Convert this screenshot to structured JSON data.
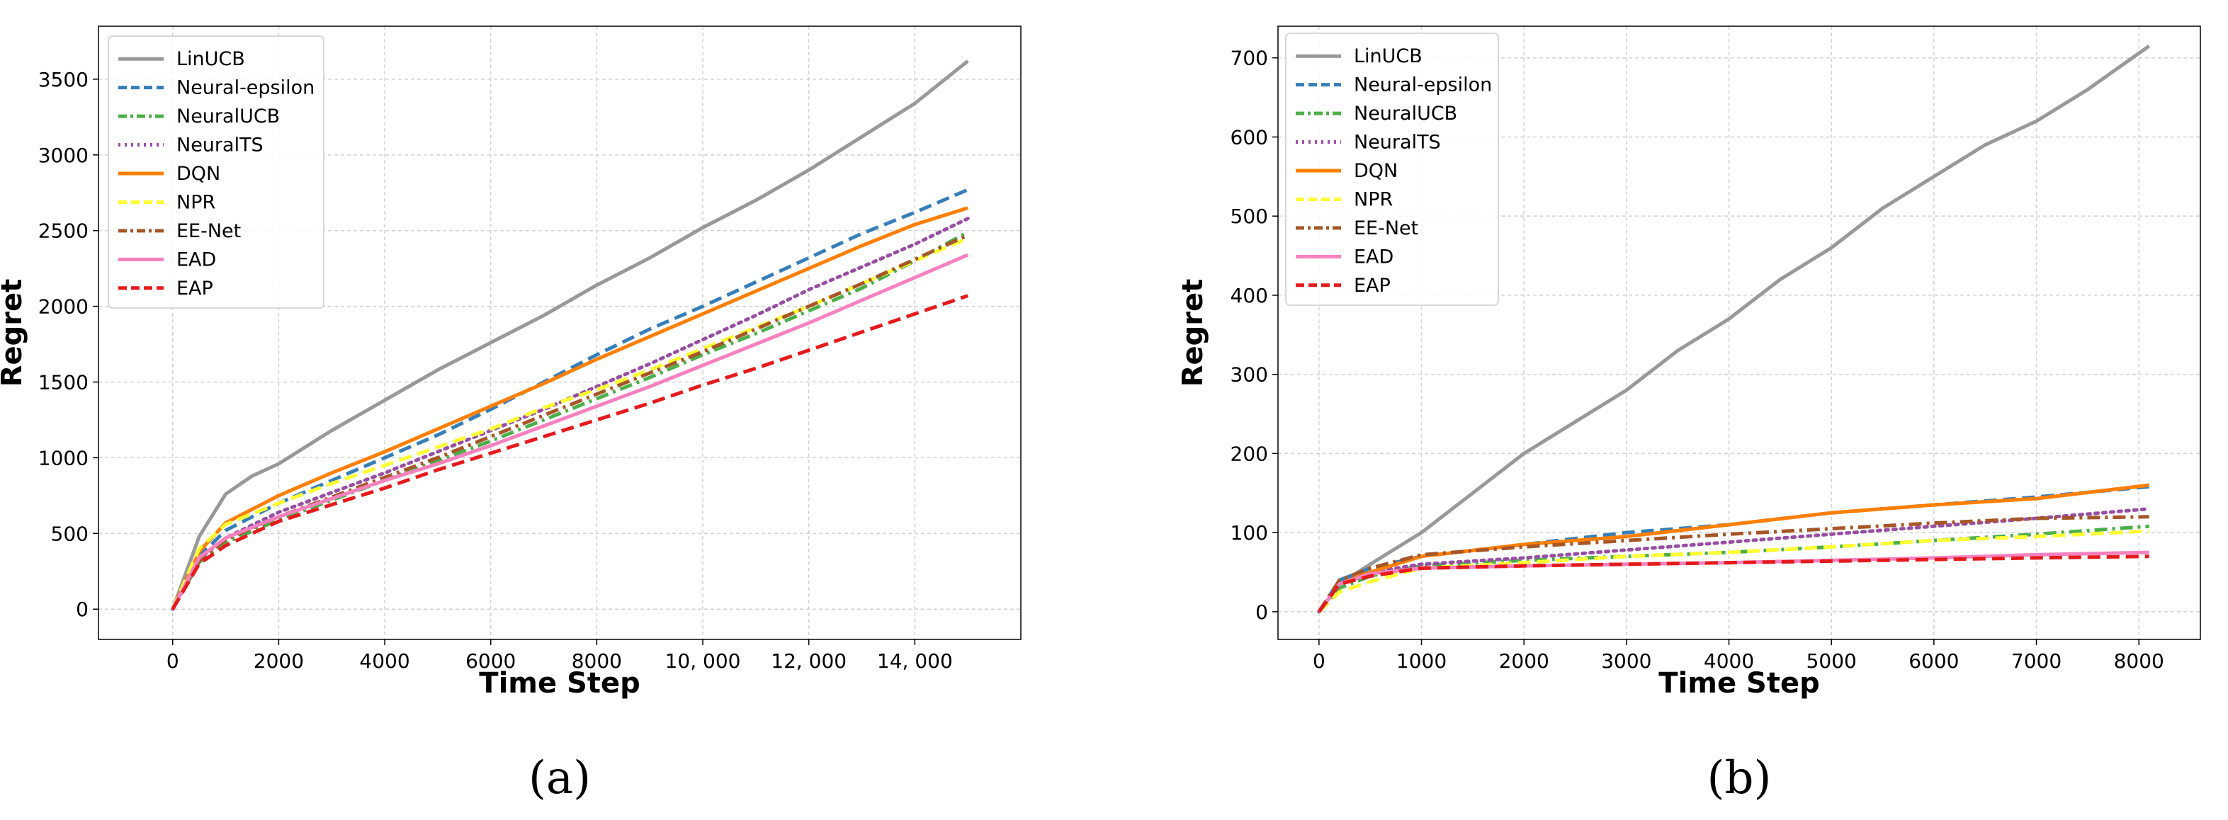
{
  "chart_data": [
    {
      "type": "line",
      "panel_label": "(a)",
      "title": "",
      "xlabel": "Time Step",
      "ylabel": "Regret",
      "xlim": [
        -1400,
        16000
      ],
      "ylim": [
        -200,
        3850
      ],
      "xticks": [
        0,
        2000,
        4000,
        6000,
        8000,
        10000,
        12000,
        14000
      ],
      "xtick_labels": [
        "0",
        "2000",
        "4000",
        "6000",
        "8000",
        "10, 000",
        "12, 000",
        "14, 000"
      ],
      "yticks": [
        0,
        500,
        1000,
        1500,
        2000,
        2500,
        3000,
        3500
      ],
      "ytick_labels": [
        "0",
        "500",
        "1000",
        "1500",
        "2000",
        "2500",
        "3000",
        "3500"
      ],
      "grid": true,
      "legend_position": "top-left",
      "series": [
        {
          "name": "LinUCB",
          "color": "#999999",
          "style": "solid",
          "x": [
            0,
            500,
            1000,
            1500,
            2000,
            3000,
            4000,
            5000,
            6000,
            7000,
            8000,
            9000,
            10000,
            11000,
            12000,
            13000,
            14000,
            15000
          ],
          "y": [
            0,
            480,
            760,
            880,
            960,
            1180,
            1380,
            1580,
            1760,
            1940,
            2140,
            2320,
            2520,
            2700,
            2900,
            3120,
            3340,
            3620
          ]
        },
        {
          "name": "Neural-epsilon",
          "color": "#377eb8",
          "style": "dashed",
          "x": [
            0,
            500,
            1000,
            2000,
            3000,
            4000,
            5000,
            6000,
            7000,
            8000,
            9000,
            10000,
            11000,
            12000,
            13000,
            14000,
            15000
          ],
          "y": [
            0,
            350,
            520,
            700,
            850,
            1000,
            1150,
            1320,
            1500,
            1680,
            1850,
            2000,
            2160,
            2320,
            2480,
            2620,
            2770
          ]
        },
        {
          "name": "NeuralUCB",
          "color": "#4daf4a",
          "style": "dashdot",
          "x": [
            0,
            500,
            1000,
            2000,
            3000,
            4000,
            5000,
            6000,
            7000,
            8000,
            9000,
            10000,
            11000,
            12000,
            13000,
            14000,
            15000
          ],
          "y": [
            0,
            310,
            440,
            590,
            720,
            850,
            980,
            1110,
            1250,
            1390,
            1530,
            1680,
            1820,
            1970,
            2120,
            2300,
            2490
          ]
        },
        {
          "name": "NeuralTS",
          "color": "#984ea3",
          "style": "dotted",
          "x": [
            0,
            500,
            1000,
            2000,
            3000,
            4000,
            5000,
            6000,
            7000,
            8000,
            9000,
            10000,
            11000,
            12000,
            13000,
            14000,
            15000
          ],
          "y": [
            0,
            330,
            470,
            640,
            770,
            900,
            1040,
            1180,
            1320,
            1470,
            1620,
            1780,
            1940,
            2110,
            2260,
            2410,
            2580
          ]
        },
        {
          "name": "DQN",
          "color": "#ff7f00",
          "style": "solid",
          "x": [
            0,
            500,
            1000,
            2000,
            3000,
            4000,
            5000,
            6000,
            7000,
            8000,
            9000,
            10000,
            11000,
            12000,
            13000,
            14000,
            15000
          ],
          "y": [
            0,
            380,
            570,
            750,
            900,
            1040,
            1190,
            1340,
            1490,
            1650,
            1800,
            1950,
            2100,
            2250,
            2400,
            2540,
            2650
          ]
        },
        {
          "name": "NPR",
          "color": "#ffff33",
          "style": "dashed",
          "x": [
            0,
            500,
            1000,
            2000,
            3000,
            4000,
            5000,
            6000,
            7000,
            8000,
            9000,
            10000,
            11000,
            12000,
            13000,
            14000,
            15000
          ],
          "y": [
            0,
            400,
            560,
            700,
            830,
            950,
            1070,
            1190,
            1330,
            1450,
            1580,
            1720,
            1860,
            2000,
            2150,
            2300,
            2450
          ]
        },
        {
          "name": "EE-Net",
          "color": "#a65628",
          "style": "dashdot",
          "x": [
            0,
            500,
            1000,
            2000,
            3000,
            4000,
            5000,
            6000,
            7000,
            8000,
            9000,
            10000,
            11000,
            12000,
            13000,
            14000,
            15000
          ],
          "y": [
            0,
            320,
            460,
            610,
            740,
            870,
            1000,
            1140,
            1280,
            1420,
            1560,
            1700,
            1850,
            2000,
            2150,
            2310,
            2470
          ]
        },
        {
          "name": "EAD",
          "color": "#f781bf",
          "style": "solid",
          "x": [
            0,
            500,
            1000,
            2000,
            3000,
            4000,
            5000,
            6000,
            7000,
            8000,
            9000,
            10000,
            11000,
            12000,
            13000,
            14000,
            15000
          ],
          "y": [
            0,
            340,
            470,
            610,
            730,
            850,
            960,
            1080,
            1210,
            1340,
            1470,
            1610,
            1750,
            1890,
            2040,
            2190,
            2340
          ]
        },
        {
          "name": "EAP",
          "color": "#e41a1c",
          "style": "dashed",
          "x": [
            0,
            500,
            1000,
            2000,
            3000,
            4000,
            5000,
            6000,
            7000,
            8000,
            9000,
            10000,
            11000,
            12000,
            13000,
            14000,
            15000
          ],
          "y": [
            0,
            300,
            420,
            580,
            690,
            800,
            920,
            1030,
            1140,
            1250,
            1360,
            1480,
            1590,
            1710,
            1830,
            1950,
            2070
          ]
        }
      ]
    },
    {
      "type": "line",
      "panel_label": "(b)",
      "title": "",
      "xlabel": "Time Step",
      "ylabel": "Regret",
      "xlim": [
        -400,
        8600
      ],
      "ylim": [
        -35,
        740
      ],
      "xticks": [
        0,
        1000,
        2000,
        3000,
        4000,
        5000,
        6000,
        7000,
        8000
      ],
      "xtick_labels": [
        "0",
        "1000",
        "2000",
        "3000",
        "4000",
        "5000",
        "6000",
        "7000",
        "8000"
      ],
      "yticks": [
        0,
        100,
        200,
        300,
        400,
        500,
        600,
        700
      ],
      "ytick_labels": [
        "0",
        "100",
        "200",
        "300",
        "400",
        "500",
        "600",
        "700"
      ],
      "grid": true,
      "legend_position": "top-left",
      "series": [
        {
          "name": "LinUCB",
          "color": "#999999",
          "style": "solid",
          "x": [
            0,
            200,
            500,
            1000,
            1500,
            2000,
            2500,
            3000,
            3500,
            4000,
            4500,
            5000,
            5500,
            6000,
            6500,
            7000,
            7500,
            8100
          ],
          "y": [
            0,
            35,
            60,
            100,
            150,
            200,
            240,
            280,
            330,
            370,
            420,
            460,
            510,
            550,
            590,
            620,
            660,
            715
          ]
        },
        {
          "name": "Neural-epsilon",
          "color": "#377eb8",
          "style": "dashed",
          "x": [
            0,
            200,
            500,
            1000,
            2000,
            3000,
            4000,
            5000,
            6000,
            7000,
            8100
          ],
          "y": [
            0,
            40,
            55,
            70,
            85,
            100,
            110,
            125,
            135,
            145,
            158
          ]
        },
        {
          "name": "NeuralUCB",
          "color": "#4daf4a",
          "style": "dashdot",
          "x": [
            0,
            200,
            500,
            1000,
            2000,
            3000,
            4000,
            5000,
            6000,
            7000,
            8100
          ],
          "y": [
            0,
            30,
            45,
            58,
            65,
            70,
            75,
            82,
            90,
            98,
            108
          ]
        },
        {
          "name": "NeuralTS",
          "color": "#984ea3",
          "style": "dotted",
          "x": [
            0,
            200,
            500,
            1000,
            2000,
            3000,
            4000,
            5000,
            6000,
            7000,
            8100
          ],
          "y": [
            0,
            35,
            50,
            60,
            68,
            78,
            88,
            98,
            108,
            118,
            130
          ]
        },
        {
          "name": "DQN",
          "color": "#ff7f00",
          "style": "solid",
          "x": [
            0,
            200,
            500,
            1000,
            2000,
            3000,
            4000,
            5000,
            6000,
            7000,
            8100
          ],
          "y": [
            0,
            35,
            50,
            70,
            85,
            95,
            110,
            125,
            135,
            143,
            160
          ]
        },
        {
          "name": "NPR",
          "color": "#ffff33",
          "style": "dashed",
          "x": [
            0,
            200,
            500,
            1000,
            2000,
            3000,
            4000,
            5000,
            6000,
            7000,
            8100
          ],
          "y": [
            0,
            25,
            38,
            55,
            62,
            70,
            75,
            82,
            90,
            95,
            102
          ]
        },
        {
          "name": "EE-Net",
          "color": "#a65628",
          "style": "dashdot",
          "x": [
            0,
            200,
            500,
            1000,
            2000,
            3000,
            4000,
            5000,
            6000,
            7000,
            8100
          ],
          "y": [
            0,
            40,
            55,
            72,
            82,
            90,
            98,
            105,
            112,
            118,
            120
          ]
        },
        {
          "name": "EAD",
          "color": "#f781bf",
          "style": "solid",
          "x": [
            0,
            200,
            500,
            1000,
            2000,
            3000,
            4000,
            5000,
            6000,
            7000,
            8100
          ],
          "y": [
            0,
            35,
            48,
            55,
            58,
            60,
            62,
            65,
            68,
            72,
            75
          ]
        },
        {
          "name": "EAP",
          "color": "#e41a1c",
          "style": "dashed",
          "x": [
            0,
            200,
            500,
            1000,
            2000,
            3000,
            4000,
            5000,
            6000,
            7000,
            8100
          ],
          "y": [
            0,
            35,
            45,
            55,
            58,
            60,
            62,
            64,
            66,
            68,
            70
          ]
        }
      ]
    }
  ]
}
